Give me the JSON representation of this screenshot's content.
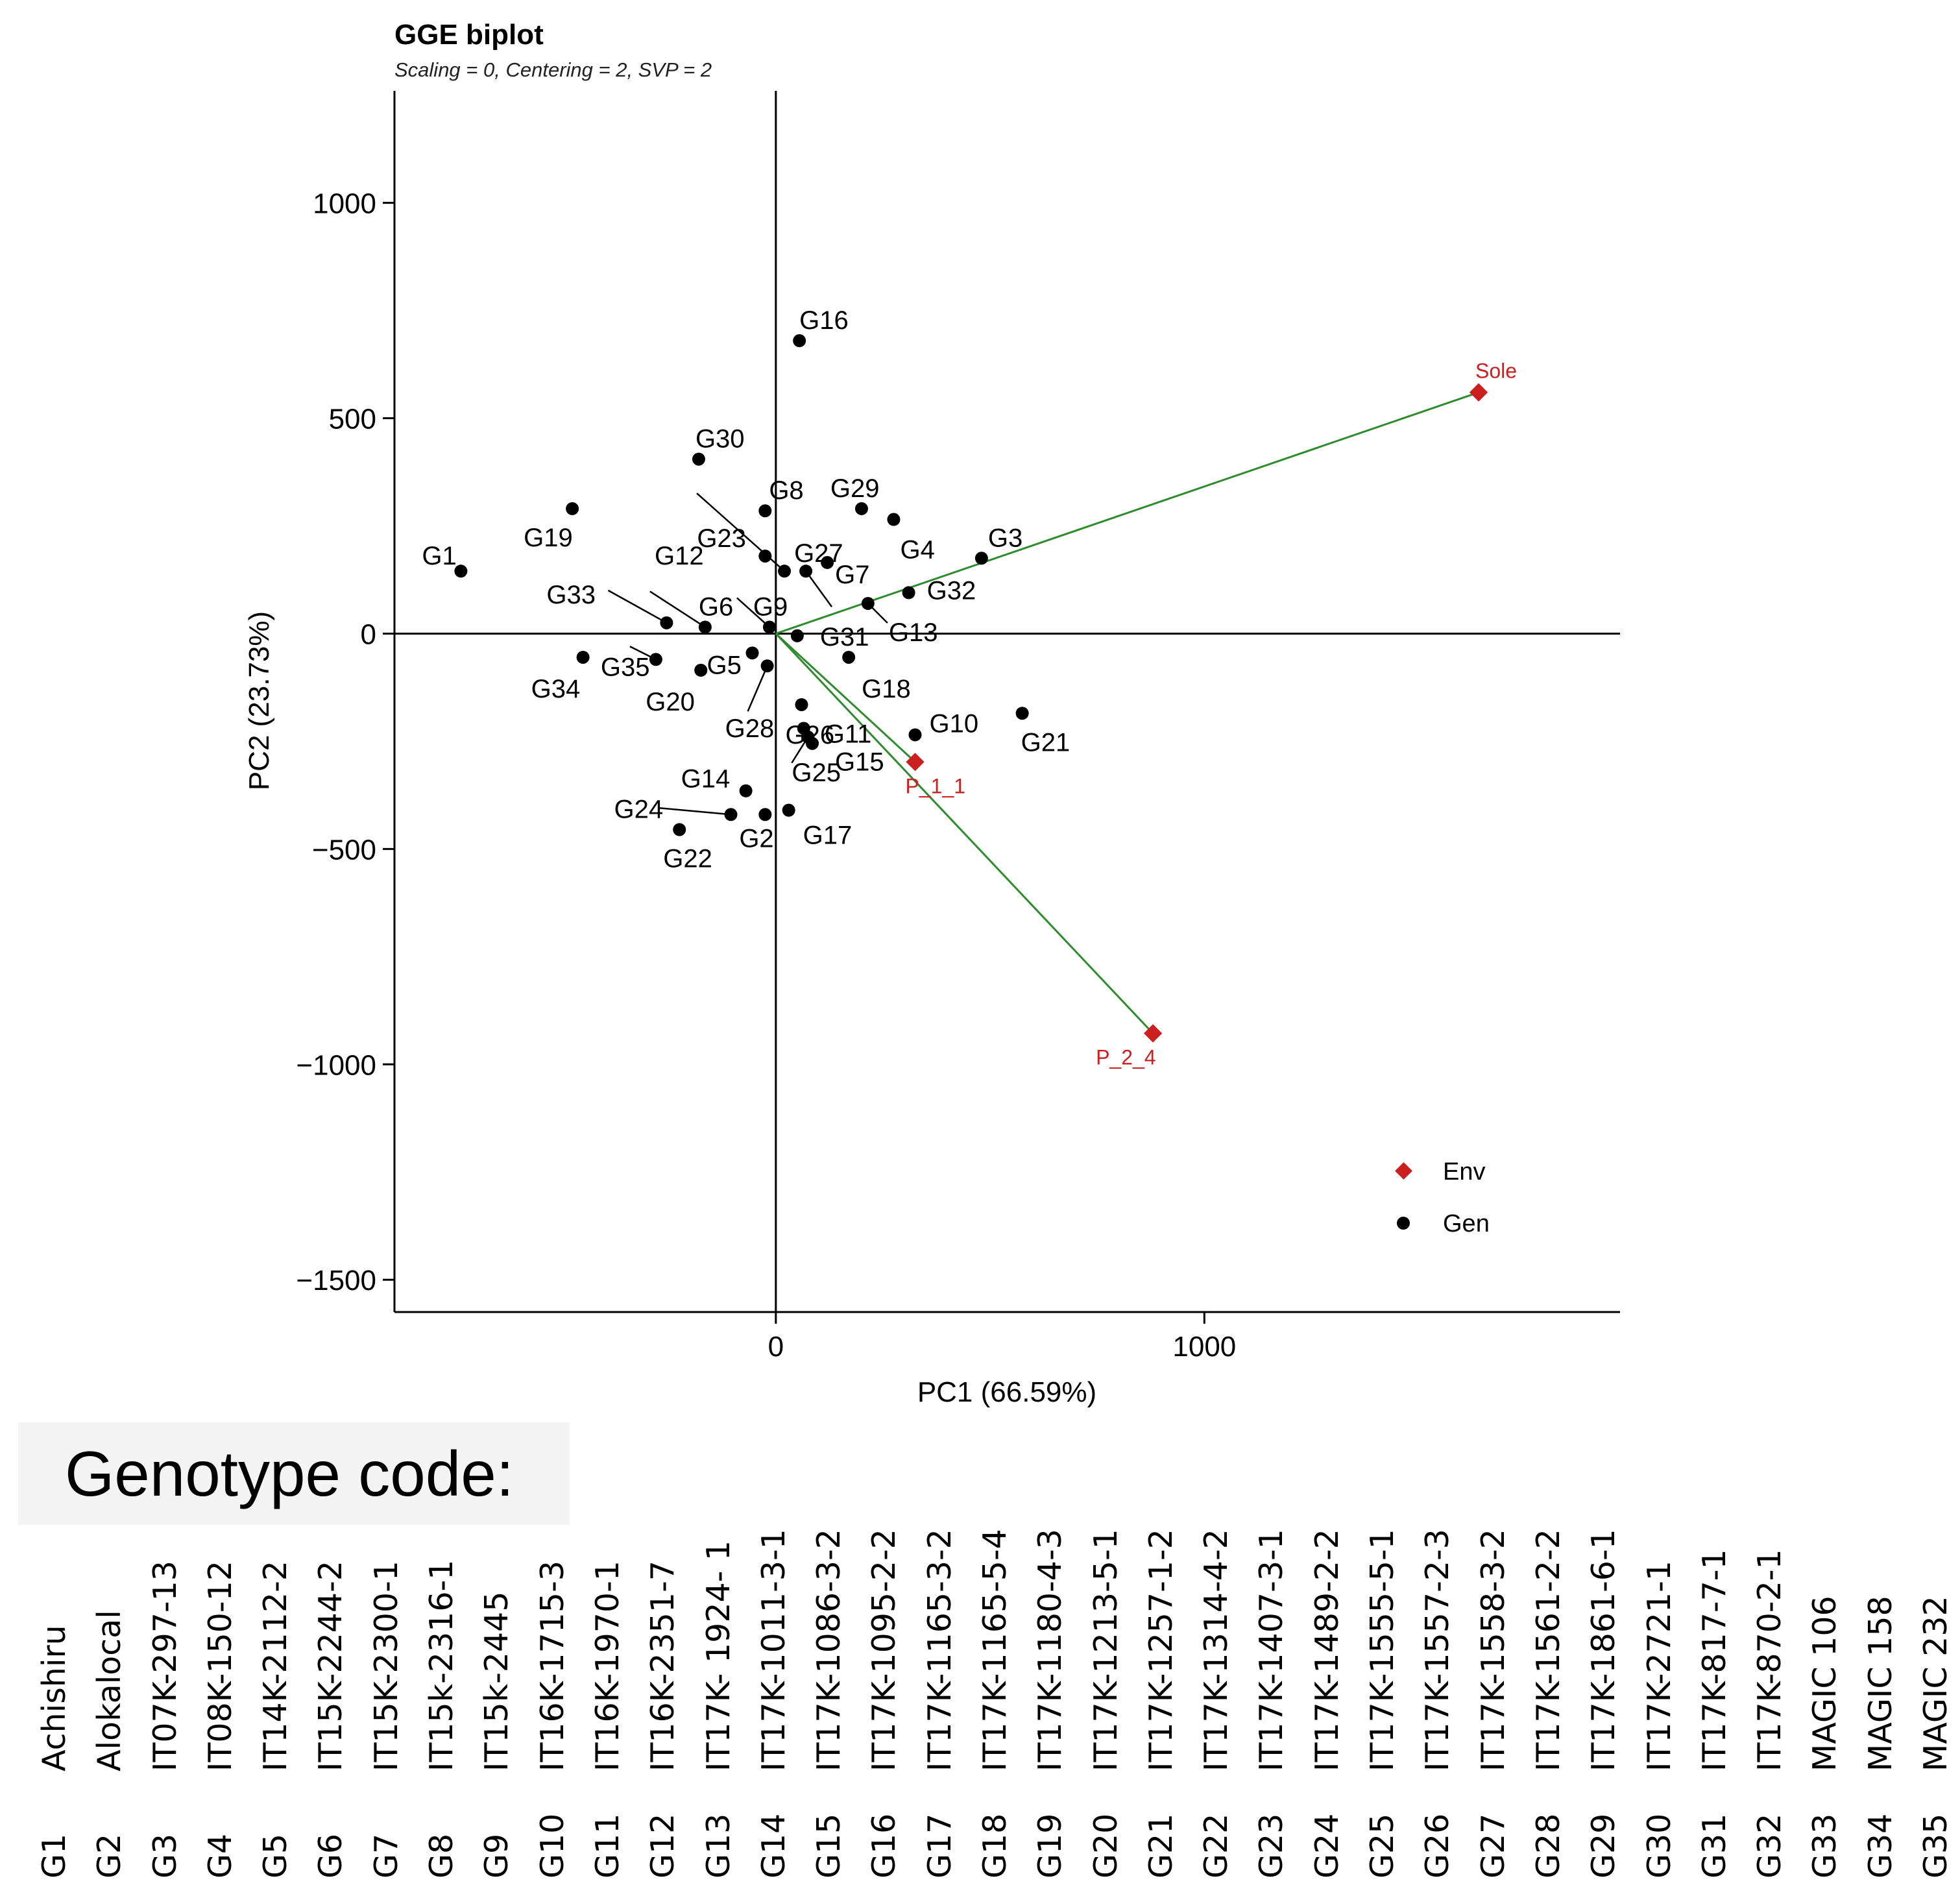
{
  "chart_data": {
    "type": "scatter",
    "title": "GGE biplot",
    "subtitle": "Scaling = 0, Centering = 2, SVP = 2",
    "xlabel": "PC1 (66.59%)",
    "ylabel": "PC2 (23.73%)",
    "xlim": [
      -890,
      1970
    ],
    "ylim": [
      -1575,
      1260
    ],
    "xticks": [
      0,
      1000
    ],
    "yticks": [
      -1500,
      -1000,
      -500,
      0,
      500,
      1000
    ],
    "legend": {
      "position": "bottom-right",
      "entries": [
        {
          "label": "Env",
          "marker": "diamond",
          "color": "#cc1f1f"
        },
        {
          "label": "Gen",
          "marker": "circle",
          "color": "#000000"
        }
      ]
    },
    "env_vector_color": "#2e8b2e",
    "environments": [
      {
        "name": "Sole",
        "x": 1640,
        "y": 560
      },
      {
        "name": "P_1_1",
        "x": 325,
        "y": -298
      },
      {
        "name": "P_2_4",
        "x": 880,
        "y": -928
      }
    ],
    "genotypes": [
      {
        "name": "G1",
        "x": -735,
        "y": 145
      },
      {
        "name": "G2",
        "x": -25,
        "y": -420
      },
      {
        "name": "G3",
        "x": 480,
        "y": 175
      },
      {
        "name": "G4",
        "x": 275,
        "y": 265
      },
      {
        "name": "G5",
        "x": -55,
        "y": -45
      },
      {
        "name": "G6",
        "x": -165,
        "y": 15
      },
      {
        "name": "G7",
        "x": 120,
        "y": 165
      },
      {
        "name": "G8",
        "x": -25,
        "y": 285
      },
      {
        "name": "G9",
        "x": -15,
        "y": 15
      },
      {
        "name": "G10",
        "x": 325,
        "y": -235
      },
      {
        "name": "G11",
        "x": 65,
        "y": -220
      },
      {
        "name": "G12",
        "x": 20,
        "y": 145
      },
      {
        "name": "G13",
        "x": 215,
        "y": 70
      },
      {
        "name": "G14",
        "x": -70,
        "y": -365
      },
      {
        "name": "G15",
        "x": 85,
        "y": -255
      },
      {
        "name": "G16",
        "x": 55,
        "y": 680
      },
      {
        "name": "G17",
        "x": 30,
        "y": -410
      },
      {
        "name": "G18",
        "x": 170,
        "y": -55
      },
      {
        "name": "G19",
        "x": -475,
        "y": 290
      },
      {
        "name": "G20",
        "x": -175,
        "y": -85
      },
      {
        "name": "G21",
        "x": 575,
        "y": -185
      },
      {
        "name": "G22",
        "x": -225,
        "y": -455
      },
      {
        "name": "G23",
        "x": -25,
        "y": 180
      },
      {
        "name": "G24",
        "x": -105,
        "y": -420
      },
      {
        "name": "G25",
        "x": 75,
        "y": -240
      },
      {
        "name": "G26",
        "x": 60,
        "y": -165
      },
      {
        "name": "G27",
        "x": 70,
        "y": 145
      },
      {
        "name": "G28",
        "x": -20,
        "y": -75
      },
      {
        "name": "G29",
        "x": 200,
        "y": 290
      },
      {
        "name": "G30",
        "x": -180,
        "y": 405
      },
      {
        "name": "G31",
        "x": 50,
        "y": -5
      },
      {
        "name": "G32",
        "x": 310,
        "y": 95
      },
      {
        "name": "G33",
        "x": -255,
        "y": 25
      },
      {
        "name": "G34",
        "x": -450,
        "y": -55
      },
      {
        "name": "G35",
        "x": -280,
        "y": -60
      }
    ]
  },
  "genotype_code": {
    "title": "Genotype code:",
    "entries": [
      {
        "id": "G1",
        "name": "Achishiru"
      },
      {
        "id": "G2",
        "name": "Alokalocal"
      },
      {
        "id": "G3",
        "name": "IT07K-297-13"
      },
      {
        "id": "G4",
        "name": "IT08K-150-12"
      },
      {
        "id": "G5",
        "name": "IT14K-2112-2"
      },
      {
        "id": "G6",
        "name": "IT15K-2244-2"
      },
      {
        "id": "G7",
        "name": "IT15K-2300-1"
      },
      {
        "id": "G8",
        "name": "IT15k-2316-1"
      },
      {
        "id": "G9",
        "name": "IT15k-2445"
      },
      {
        "id": "G10",
        "name": "IT16K-1715-3"
      },
      {
        "id": "G11",
        "name": "IT16K-1970-1"
      },
      {
        "id": "G12",
        "name": "IT16K-2351-7"
      },
      {
        "id": "G13",
        "name": "IT17K- 1924- 1"
      },
      {
        "id": "G14",
        "name": "IT17K-1011-3-1"
      },
      {
        "id": "G15",
        "name": "IT17K-1086-3-2"
      },
      {
        "id": "G16",
        "name": "IT17K-1095-2-2"
      },
      {
        "id": "G17",
        "name": "IT17K-1165-3-2"
      },
      {
        "id": "G18",
        "name": "IT17K-1165-5-4"
      },
      {
        "id": "G19",
        "name": "IT17K-1180-4-3"
      },
      {
        "id": "G20",
        "name": "IT17K-1213-5-1"
      },
      {
        "id": "G21",
        "name": "IT17K-1257-1-2"
      },
      {
        "id": "G22",
        "name": "IT17K-1314-4-2"
      },
      {
        "id": "G23",
        "name": "IT17K-1407-3-1"
      },
      {
        "id": "G24",
        "name": "IT17K-1489-2-2"
      },
      {
        "id": "G25",
        "name": "IT17K-1555-5-1"
      },
      {
        "id": "G26",
        "name": "IT17K-1557-2-3"
      },
      {
        "id": "G27",
        "name": "IT17K-1558-3-2"
      },
      {
        "id": "G28",
        "name": "IT17K-1561-2-2"
      },
      {
        "id": "G29",
        "name": "IT17K-1861-6-1"
      },
      {
        "id": "G30",
        "name": "IT17K-2721-1"
      },
      {
        "id": "G31",
        "name": "IT17K-817-7-1"
      },
      {
        "id": "G32",
        "name": "IT17K-870-2-1"
      },
      {
        "id": "G33",
        "name": "MAGIC 106"
      },
      {
        "id": "G34",
        "name": "MAGIC 158"
      },
      {
        "id": "G35",
        "name": "MAGIC 232"
      }
    ]
  }
}
